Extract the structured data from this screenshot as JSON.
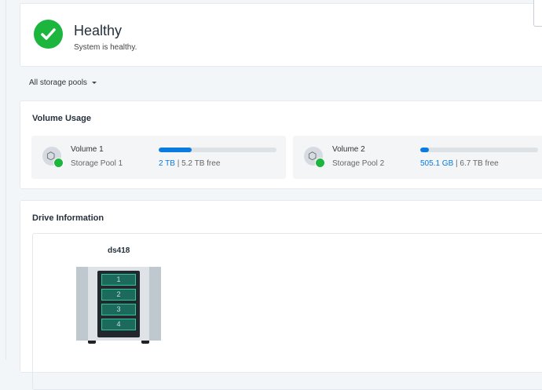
{
  "status": {
    "title": "Healthy",
    "subtitle": "System is healthy.",
    "icon": "check-circle-icon",
    "color": "#1cb53d"
  },
  "filter": {
    "selected": "All storage pools"
  },
  "volume_usage": {
    "title": "Volume Usage",
    "volumes": [
      {
        "name": "Volume 1",
        "pool": "Storage Pool 1",
        "used": "2 TB",
        "free": "5.2 TB free",
        "usage_percent": 28
      },
      {
        "name": "Volume 2",
        "pool": "Storage Pool 2",
        "used": "505.1 GB",
        "free": "6.7 TB free",
        "usage_percent": 7
      }
    ]
  },
  "drive_info": {
    "title": "Drive Information",
    "model": "ds418",
    "bays": [
      "1",
      "2",
      "3",
      "4"
    ]
  }
}
